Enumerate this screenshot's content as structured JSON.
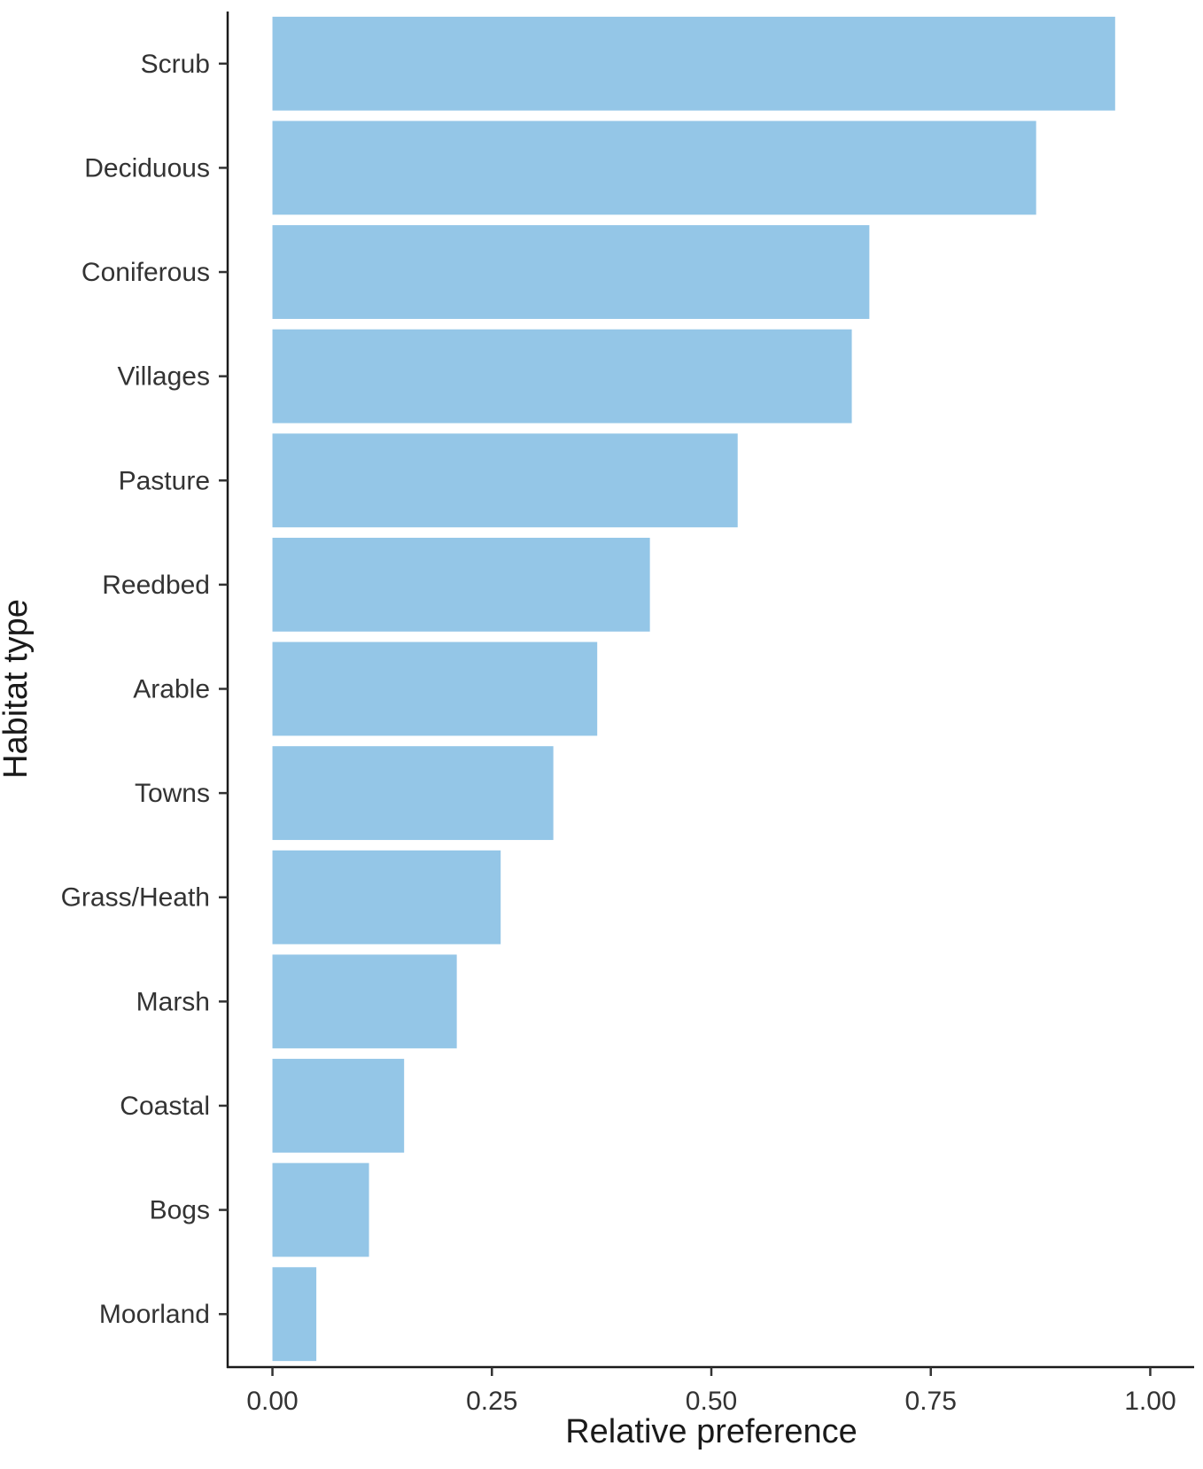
{
  "chart_data": {
    "type": "bar",
    "orientation": "horizontal",
    "categories": [
      "Scrub",
      "Deciduous",
      "Coniferous",
      "Villages",
      "Pasture",
      "Reedbed",
      "Arable",
      "Towns",
      "Grass/Heath",
      "Marsh",
      "Coastal",
      "Bogs",
      "Moorland"
    ],
    "values": [
      0.96,
      0.87,
      0.68,
      0.66,
      0.53,
      0.43,
      0.37,
      0.32,
      0.26,
      0.21,
      0.15,
      0.11,
      0.05
    ],
    "xlabel": "Relative preference",
    "ylabel": "Habitat type",
    "xlim": [
      -0.05,
      1.05
    ],
    "x_ticks": [
      0,
      0.25,
      0.5,
      0.75,
      1
    ],
    "x_tick_labels": [
      "0.00",
      "0.25",
      "0.50",
      "0.75",
      "1.00"
    ],
    "grid": false,
    "bar_color": "#94c6e7"
  }
}
